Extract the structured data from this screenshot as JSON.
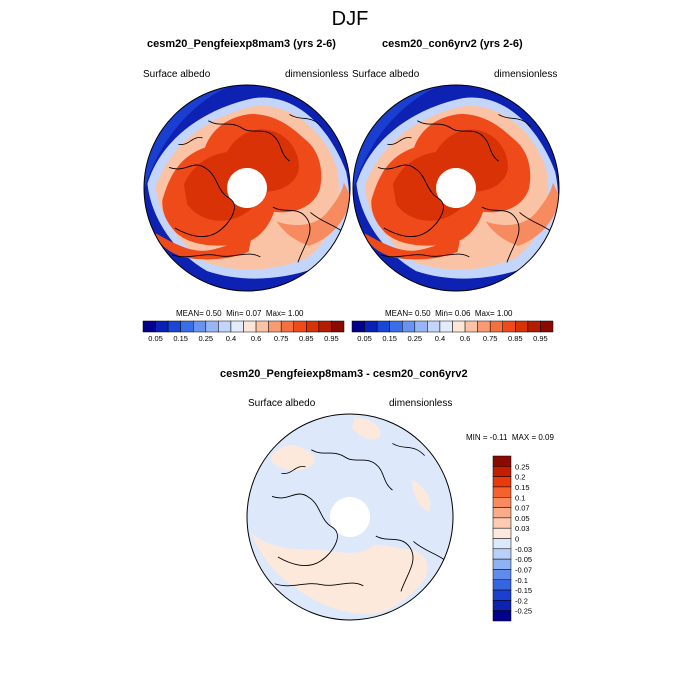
{
  "figure": {
    "title": "DJF",
    "field_label": "Surface albedo",
    "units_label": "dimensionless"
  },
  "panels": [
    {
      "title": "cesm20_Pengfeiexp8mam3 (yrs 2-6)",
      "stats": {
        "mean_label": "MEAN=",
        "mean": "0.50",
        "min_label": "Min=",
        "min": "0.07",
        "max_label": "Max=",
        "max": "1.00"
      }
    },
    {
      "title": "cesm20_con6yrv2 (yrs 2-6)",
      "stats": {
        "mean_label": "MEAN=",
        "mean": "0.50",
        "min_label": "Min=",
        "min": "0.06",
        "max_label": "Max=",
        "max": "1.00"
      }
    }
  ],
  "diff_panel": {
    "title": "cesm20_Pengfeiexp8mam3 - cesm20_con6yrv2",
    "stats": {
      "min_label": "MIN =",
      "min": "-0.11",
      "max_label": "MAX =",
      "max": "0.09"
    }
  },
  "colorbar_abs": {
    "labels": [
      "0.05",
      "0.15",
      "0.25",
      "0.4",
      "0.6",
      "0.75",
      "0.85",
      "0.95"
    ],
    "colors": [
      "#02008c",
      "#0a21b8",
      "#1847d6",
      "#3a6ee8",
      "#6a93f0",
      "#97b4f5",
      "#c3d5fa",
      "#e2ecfc",
      "#fde6d8",
      "#fbc3a5",
      "#f99a73",
      "#f5703f",
      "#ef4a1a",
      "#d93206",
      "#b51d00",
      "#8a0a00"
    ]
  },
  "colorbar_diff": {
    "labels": [
      "0.25",
      "0.2",
      "0.15",
      "0.1",
      "0.07",
      "0.05",
      "0.03",
      "0",
      "-0.03",
      "-0.05",
      "-0.07",
      "-0.1",
      "-0.15",
      "-0.2",
      "-0.25"
    ],
    "colors": [
      "#8a0a00",
      "#c41e00",
      "#e83a0d",
      "#f5622d",
      "#f88a5f",
      "#f9ab8a",
      "#fccbb2",
      "#fde9dc",
      "#dde9fb",
      "#b9d0f8",
      "#8fb2f2",
      "#5f8cea",
      "#3566e0",
      "#1c3fd0",
      "#0c22b0",
      "#02008c"
    ]
  },
  "chart_data": {
    "type": "map",
    "projection": "north-polar-stereographic",
    "season": "DJF",
    "variable": "Surface albedo",
    "units": "dimensionless",
    "maps": [
      {
        "case": "cesm20_Pengfeiexp8mam3 (yrs 2-6)",
        "mean": 0.5,
        "min": 0.07,
        "max": 1.0
      },
      {
        "case": "cesm20_con6yrv2 (yrs 2-6)",
        "mean": 0.5,
        "min": 0.06,
        "max": 1.0
      },
      {
        "case": "cesm20_Pengfeiexp8mam3 - cesm20_con6yrv2",
        "min": -0.11,
        "max": 0.09
      }
    ],
    "contour_levels_abs": [
      0.05,
      0.15,
      0.25,
      0.4,
      0.6,
      0.75,
      0.85,
      0.95
    ],
    "contour_levels_diff": [
      -0.25,
      -0.2,
      -0.15,
      -0.1,
      -0.07,
      -0.05,
      -0.03,
      0,
      0.03,
      0.05,
      0.07,
      0.1,
      0.15,
      0.2,
      0.25
    ]
  }
}
